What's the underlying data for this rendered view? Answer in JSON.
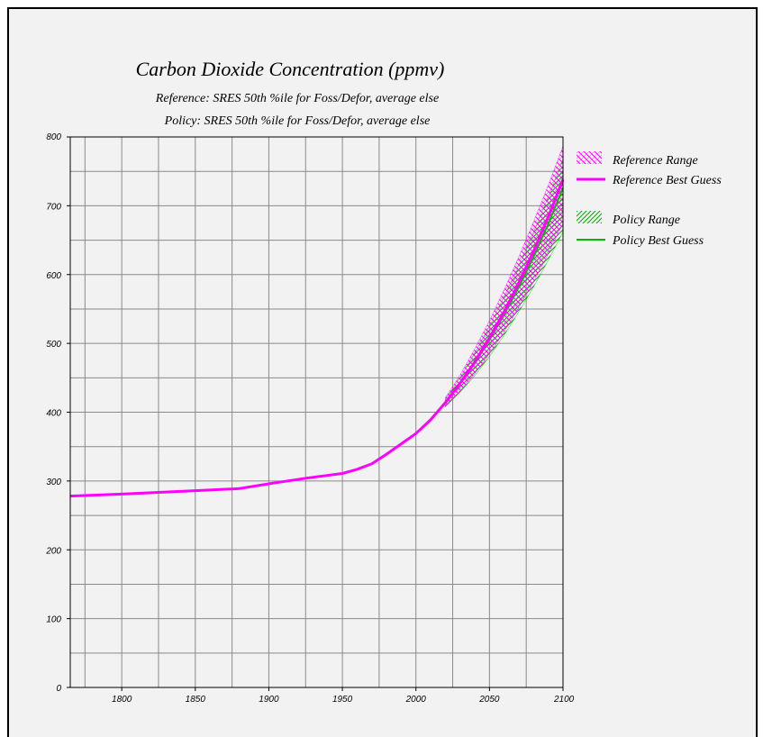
{
  "chart_data": {
    "type": "line",
    "title": "Carbon Dioxide Concentration (ppmv)",
    "subtitle_1": "Reference: SRES 50th %ile for Foss/Defor, average else",
    "subtitle_2": "Policy: SRES 50th %ile for Foss/Defor, average else",
    "xlim": [
      1765,
      2100
    ],
    "ylim": [
      0,
      800
    ],
    "x_ticks": [
      1800,
      1850,
      1900,
      1950,
      2000,
      2050,
      2100
    ],
    "y_ticks": [
      0,
      100,
      200,
      300,
      400,
      500,
      600,
      700,
      800
    ],
    "grid": true,
    "legend_position": "right",
    "series": [
      {
        "name": "Reference Best Guess",
        "color": "#ff00ff",
        "x": [
          1765,
          1800,
          1850,
          1880,
          1900,
          1925,
          1950,
          1960,
          1970,
          1980,
          1990,
          2000,
          2010,
          2020,
          2030,
          2040,
          2050,
          2060,
          2070,
          2080,
          2090,
          2100
        ],
        "y": [
          278,
          281,
          286,
          289,
          296,
          304,
          311,
          317,
          325,
          339,
          354,
          369,
          389,
          414,
          442,
          473,
          508,
          546,
          588,
          634,
          684,
          738
        ]
      },
      {
        "name": "Policy Best Guess",
        "color": "#00bb00",
        "x": [
          2010,
          2020,
          2030,
          2040,
          2050,
          2060,
          2070,
          2080,
          2090,
          2100
        ],
        "y": [
          389,
          414,
          441,
          471,
          505,
          542,
          582,
          626,
          674,
          726
        ]
      }
    ],
    "ranges": [
      {
        "name": "Reference Range",
        "color": "#ff00ff",
        "x": [
          2020,
          2030,
          2040,
          2050,
          2060,
          2070,
          2080,
          2090,
          2100
        ],
        "low": [
          408,
          430,
          456,
          485,
          517,
          552,
          590,
          630,
          675
        ],
        "high": [
          421,
          454,
          492,
          533,
          578,
          626,
          677,
          730,
          787
        ]
      },
      {
        "name": "Policy Range",
        "color": "#00bb00",
        "x": [
          2020,
          2030,
          2040,
          2050,
          2060,
          2070,
          2080,
          2090,
          2100
        ],
        "low": [
          408,
          429,
          453,
          481,
          512,
          546,
          582,
          621,
          662
        ],
        "high": [
          419,
          450,
          486,
          525,
          568,
          614,
          662,
          713,
          768
        ]
      }
    ]
  }
}
